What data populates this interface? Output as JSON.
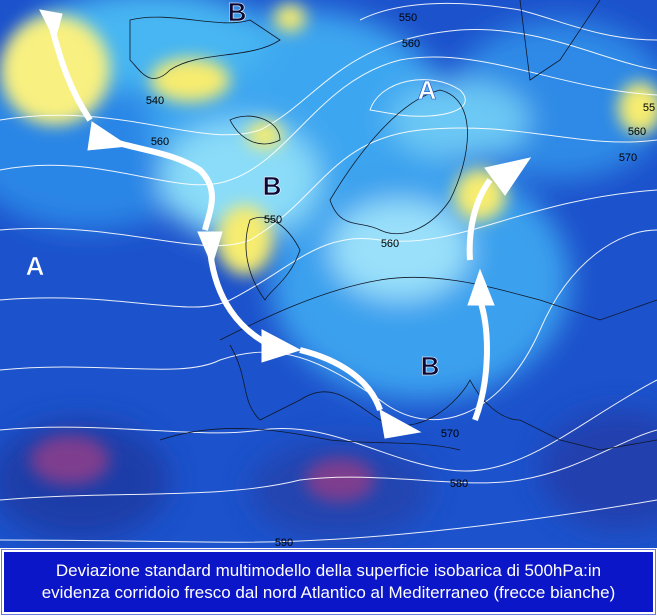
{
  "pressure_centers": [
    "B",
    "A",
    "B",
    "A",
    "B"
  ],
  "isobar_labels": [
    "550",
    "560",
    "540",
    "560",
    "550",
    "560",
    "570",
    "580",
    "590",
    "55",
    "560",
    "570"
  ],
  "caption": {
    "line1": "Deviazione standard multimodello della superficie isobarica di 500hPa:in",
    "line2": "evidenza corridoio fresco dal nord Atlantico al Mediterraneo (frecce bianche)"
  }
}
